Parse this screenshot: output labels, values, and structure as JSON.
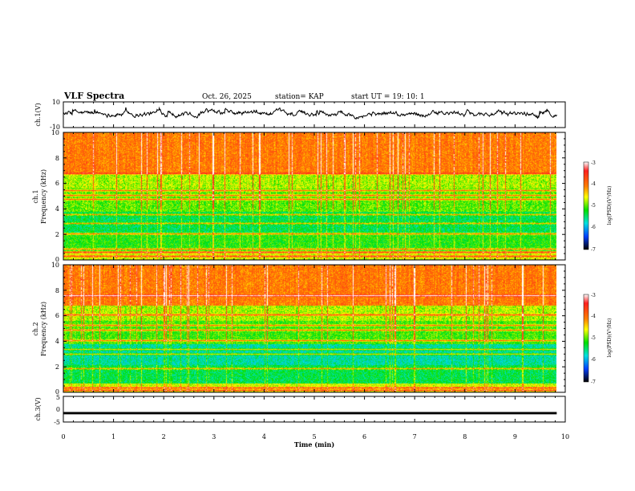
{
  "header": {
    "title": "VLF Spectra",
    "date": "Oct. 26, 2025",
    "station": "station= KAP",
    "start_ut": "start  UT  =   19: 10: 1"
  },
  "chart_data": [
    {
      "type": "line",
      "id": "ch1_waveform",
      "ylabel": "ch.1(V)",
      "ylim": [
        -10,
        10
      ],
      "y_ticks": [
        "10",
        "-10"
      ],
      "x_range_min": [
        0,
        9.83
      ],
      "series_note": "noisy waveform, roughly between -3 V and +5 V"
    },
    {
      "type": "heatmap",
      "id": "ch1_spectrogram",
      "ylabel_line1": "ch.1",
      "ylabel_line2": "Frequency (kHz)",
      "ylim": [
        0,
        10
      ],
      "y_ticks": [
        "0",
        "2",
        "4",
        "6",
        "8",
        "10"
      ],
      "x_range_min": [
        0,
        9.83
      ],
      "colorbar": {
        "label": "log(PSD)(V²/Hz)",
        "range": [
          -7,
          -3
        ],
        "ticks": [
          "-3",
          "-4",
          "-5",
          "-6",
          "-7"
        ]
      },
      "bands_khz": [
        0.3,
        0.6,
        0.9,
        2.1,
        2.9,
        3.6,
        4.8,
        5.1,
        5.5,
        6.8
      ]
    },
    {
      "type": "heatmap",
      "id": "ch2_spectrogram",
      "ylabel_line1": "ch.2",
      "ylabel_line2": "Frequency (kHz)",
      "ylim": [
        0,
        10
      ],
      "y_ticks": [
        "0",
        "2",
        "4",
        "6",
        "8",
        "10"
      ],
      "x_range_min": [
        0,
        9.83
      ],
      "colorbar": {
        "label": "log(PSD)(V²/Hz)",
        "range": [
          -7,
          -3
        ],
        "ticks": [
          "-3",
          "-4",
          "-5",
          "-6",
          "-7"
        ]
      },
      "bands_khz": [
        0.2,
        0.4,
        1.9,
        3.0,
        3.4,
        4.1,
        4.9,
        5.3,
        6.1,
        7.6
      ]
    },
    {
      "type": "line",
      "id": "ch3_waveform",
      "ylabel": "ch.3(V)",
      "ylim": [
        -5,
        5
      ],
      "y_ticks": [
        "5",
        "0",
        "-5"
      ],
      "x_range_min": [
        0,
        9.83
      ],
      "series_note": "flat trace near -1.5 V"
    }
  ],
  "x_axis": {
    "label": "Time (min)",
    "range": [
      0,
      10
    ],
    "ticks": [
      "0",
      "1",
      "2",
      "3",
      "4",
      "5",
      "6",
      "7",
      "8",
      "9",
      "10"
    ]
  }
}
